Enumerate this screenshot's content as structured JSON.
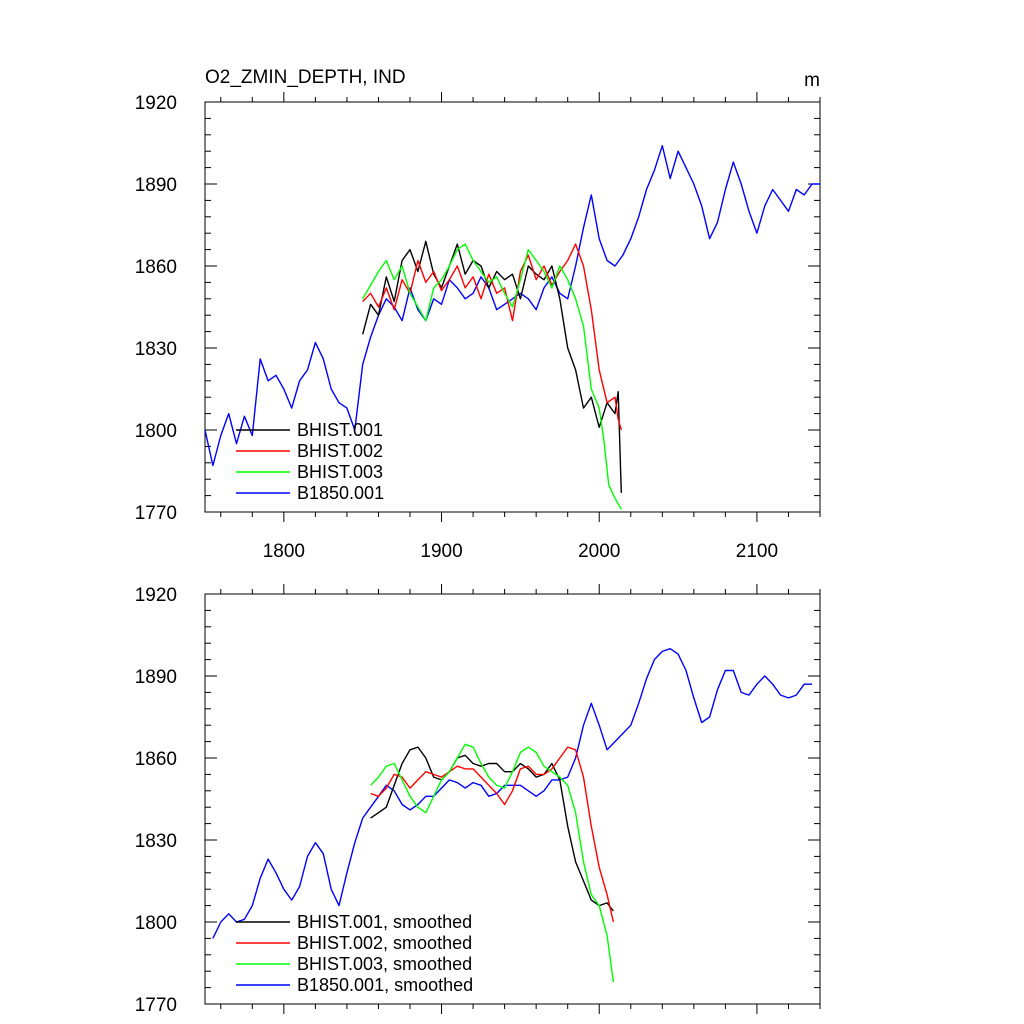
{
  "figure": {
    "title": "O2_ZMIN_DEPTH, IND",
    "units": "m",
    "colors": {
      "BHIST.001": "#000000",
      "BHIST.002": "#ff0000",
      "BHIST.003": "#00ff00",
      "B1850.001": "#0000ff"
    }
  },
  "chart_data": [
    {
      "type": "line",
      "title": "O2_ZMIN_DEPTH, IND",
      "units": "m",
      "xlim": [
        1750,
        2140
      ],
      "ylim": [
        1770,
        1920
      ],
      "xticks": [
        1800,
        1900,
        2000,
        2100
      ],
      "yticks": [
        1770,
        1800,
        1830,
        1860,
        1890,
        1920
      ],
      "legend_location": "lower-left",
      "series": [
        {
          "name": "BHIST.001",
          "color": "#000000",
          "x": [
            1850,
            1855,
            1860,
            1865,
            1870,
            1875,
            1880,
            1885,
            1890,
            1895,
            1900,
            1905,
            1910,
            1915,
            1920,
            1925,
            1930,
            1935,
            1940,
            1945,
            1950,
            1955,
            1960,
            1965,
            1970,
            1975,
            1980,
            1985,
            1990,
            1995,
            2000,
            2005,
            2010,
            2012,
            2014
          ],
          "y": [
            1835,
            1846,
            1842,
            1856,
            1847,
            1862,
            1866,
            1858,
            1869,
            1857,
            1852,
            1860,
            1868,
            1857,
            1862,
            1860,
            1852,
            1858,
            1855,
            1857,
            1848,
            1860,
            1857,
            1855,
            1860,
            1848,
            1830,
            1822,
            1808,
            1812,
            1801,
            1810,
            1806,
            1814,
            1777
          ]
        },
        {
          "name": "BHIST.002",
          "color": "#ff0000",
          "x": [
            1850,
            1855,
            1860,
            1865,
            1870,
            1875,
            1880,
            1885,
            1890,
            1895,
            1900,
            1905,
            1910,
            1915,
            1920,
            1925,
            1930,
            1935,
            1940,
            1945,
            1950,
            1955,
            1960,
            1965,
            1970,
            1975,
            1980,
            1985,
            1990,
            1995,
            2000,
            2005,
            2010,
            2012,
            2014
          ],
          "y": [
            1847,
            1850,
            1845,
            1852,
            1844,
            1855,
            1850,
            1862,
            1854,
            1858,
            1851,
            1855,
            1860,
            1852,
            1856,
            1848,
            1857,
            1850,
            1852,
            1840,
            1858,
            1864,
            1855,
            1860,
            1853,
            1858,
            1862,
            1868,
            1860,
            1844,
            1822,
            1810,
            1812,
            1804,
            1800
          ]
        },
        {
          "name": "BHIST.003",
          "color": "#00ff00",
          "x": [
            1850,
            1855,
            1860,
            1865,
            1870,
            1875,
            1880,
            1885,
            1890,
            1895,
            1900,
            1905,
            1910,
            1915,
            1920,
            1925,
            1930,
            1935,
            1940,
            1945,
            1950,
            1955,
            1960,
            1965,
            1970,
            1975,
            1980,
            1985,
            1990,
            1995,
            2000,
            2003,
            2006,
            2010,
            2014
          ],
          "y": [
            1848,
            1853,
            1858,
            1862,
            1855,
            1860,
            1850,
            1845,
            1840,
            1852,
            1855,
            1860,
            1866,
            1868,
            1862,
            1858,
            1854,
            1856,
            1850,
            1845,
            1855,
            1866,
            1862,
            1858,
            1852,
            1860,
            1855,
            1848,
            1838,
            1815,
            1808,
            1796,
            1780,
            1775,
            1771
          ]
        },
        {
          "name": "B1850.001",
          "color": "#0000ff",
          "x": [
            1750,
            1755,
            1760,
            1765,
            1770,
            1775,
            1780,
            1785,
            1790,
            1795,
            1800,
            1805,
            1810,
            1815,
            1820,
            1825,
            1830,
            1835,
            1840,
            1845,
            1850,
            1855,
            1860,
            1865,
            1870,
            1875,
            1880,
            1885,
            1890,
            1895,
            1900,
            1905,
            1910,
            1915,
            1920,
            1925,
            1930,
            1935,
            1940,
            1945,
            1950,
            1955,
            1960,
            1965,
            1970,
            1975,
            1980,
            1985,
            1990,
            1995,
            2000,
            2005,
            2010,
            2015,
            2020,
            2025,
            2030,
            2035,
            2040,
            2045,
            2050,
            2055,
            2060,
            2065,
            2070,
            2075,
            2080,
            2085,
            2090,
            2095,
            2100,
            2105,
            2110,
            2115,
            2120,
            2125,
            2130,
            2135,
            2140
          ],
          "y": [
            1800,
            1787,
            1798,
            1806,
            1795,
            1805,
            1798,
            1826,
            1818,
            1820,
            1815,
            1808,
            1818,
            1822,
            1832,
            1826,
            1815,
            1810,
            1808,
            1800,
            1824,
            1834,
            1842,
            1848,
            1845,
            1840,
            1852,
            1844,
            1840,
            1848,
            1846,
            1855,
            1852,
            1848,
            1850,
            1856,
            1852,
            1844,
            1846,
            1848,
            1850,
            1848,
            1844,
            1852,
            1856,
            1850,
            1848,
            1860,
            1874,
            1886,
            1870,
            1862,
            1860,
            1864,
            1870,
            1878,
            1888,
            1895,
            1904,
            1892,
            1902,
            1896,
            1890,
            1882,
            1870,
            1876,
            1888,
            1898,
            1890,
            1880,
            1872,
            1882,
            1888,
            1884,
            1880,
            1888,
            1886,
            1890,
            1890
          ]
        }
      ]
    },
    {
      "type": "line",
      "xlim": [
        1750,
        2140
      ],
      "ylim": [
        1770,
        1920
      ],
      "xticks": [
        1800,
        1900,
        2000,
        2100
      ],
      "yticks": [
        1770,
        1800,
        1830,
        1860,
        1890,
        1920
      ],
      "legend_location": "lower-left",
      "series": [
        {
          "name": "BHIST.001, smoothed",
          "color": "#000000",
          "x": [
            1855,
            1860,
            1865,
            1870,
            1875,
            1880,
            1885,
            1890,
            1895,
            1900,
            1905,
            1910,
            1915,
            1920,
            1925,
            1930,
            1935,
            1940,
            1945,
            1950,
            1955,
            1960,
            1965,
            1970,
            1975,
            1980,
            1985,
            1990,
            1995,
            2000,
            2005,
            2009
          ],
          "y": [
            1838,
            1840,
            1842,
            1850,
            1858,
            1863,
            1864,
            1860,
            1853,
            1852,
            1855,
            1860,
            1861,
            1858,
            1857,
            1858,
            1858,
            1855,
            1855,
            1858,
            1856,
            1853,
            1854,
            1858,
            1852,
            1835,
            1822,
            1815,
            1808,
            1806,
            1807,
            1804
          ]
        },
        {
          "name": "BHIST.002, smoothed",
          "color": "#ff0000",
          "x": [
            1855,
            1860,
            1865,
            1870,
            1875,
            1880,
            1885,
            1890,
            1895,
            1900,
            1905,
            1910,
            1915,
            1920,
            1925,
            1930,
            1935,
            1940,
            1945,
            1950,
            1955,
            1960,
            1965,
            1970,
            1975,
            1980,
            1985,
            1990,
            1995,
            2000,
            2005,
            2009
          ],
          "y": [
            1847,
            1846,
            1849,
            1854,
            1853,
            1849,
            1852,
            1855,
            1854,
            1853,
            1855,
            1857,
            1856,
            1856,
            1853,
            1850,
            1847,
            1843,
            1848,
            1856,
            1857,
            1854,
            1854,
            1856,
            1860,
            1864,
            1863,
            1853,
            1835,
            1820,
            1810,
            1800
          ]
        },
        {
          "name": "BHIST.003, smoothed",
          "color": "#00ff00",
          "x": [
            1855,
            1860,
            1865,
            1870,
            1875,
            1880,
            1885,
            1890,
            1895,
            1900,
            1905,
            1910,
            1915,
            1920,
            1925,
            1930,
            1935,
            1940,
            1945,
            1950,
            1955,
            1960,
            1965,
            1970,
            1975,
            1980,
            1985,
            1990,
            1995,
            2000,
            2005,
            2009
          ],
          "y": [
            1850,
            1853,
            1857,
            1858,
            1852,
            1846,
            1842,
            1840,
            1846,
            1852,
            1855,
            1860,
            1865,
            1864,
            1858,
            1853,
            1850,
            1849,
            1855,
            1862,
            1864,
            1862,
            1857,
            1855,
            1853,
            1850,
            1840,
            1822,
            1810,
            1806,
            1795,
            1778
          ]
        },
        {
          "name": "B1850.001, smoothed",
          "color": "#0000ff",
          "x": [
            1755,
            1760,
            1765,
            1770,
            1775,
            1780,
            1785,
            1790,
            1795,
            1800,
            1805,
            1810,
            1815,
            1820,
            1825,
            1830,
            1835,
            1840,
            1845,
            1850,
            1855,
            1860,
            1865,
            1870,
            1875,
            1880,
            1885,
            1890,
            1895,
            1900,
            1905,
            1910,
            1915,
            1920,
            1925,
            1930,
            1935,
            1940,
            1945,
            1950,
            1955,
            1960,
            1965,
            1970,
            1975,
            1980,
            1985,
            1990,
            1995,
            2000,
            2005,
            2010,
            2015,
            2020,
            2025,
            2030,
            2035,
            2040,
            2045,
            2050,
            2055,
            2060,
            2065,
            2070,
            2075,
            2080,
            2085,
            2090,
            2095,
            2100,
            2105,
            2110,
            2115,
            2120,
            2125,
            2130,
            2135
          ],
          "y": [
            1794,
            1800,
            1803,
            1800,
            1801,
            1806,
            1816,
            1823,
            1818,
            1812,
            1808,
            1813,
            1824,
            1829,
            1825,
            1812,
            1806,
            1818,
            1829,
            1838,
            1842,
            1846,
            1850,
            1848,
            1843,
            1841,
            1843,
            1846,
            1846,
            1849,
            1852,
            1851,
            1849,
            1851,
            1850,
            1846,
            1847,
            1850,
            1850,
            1850,
            1848,
            1846,
            1848,
            1852,
            1852,
            1853,
            1860,
            1872,
            1880,
            1872,
            1863,
            1866,
            1869,
            1872,
            1880,
            1889,
            1896,
            1899,
            1900,
            1898,
            1892,
            1882,
            1873,
            1875,
            1885,
            1892,
            1892,
            1884,
            1883,
            1887,
            1890,
            1887,
            1883,
            1882,
            1883,
            1887,
            1887
          ]
        }
      ]
    }
  ]
}
